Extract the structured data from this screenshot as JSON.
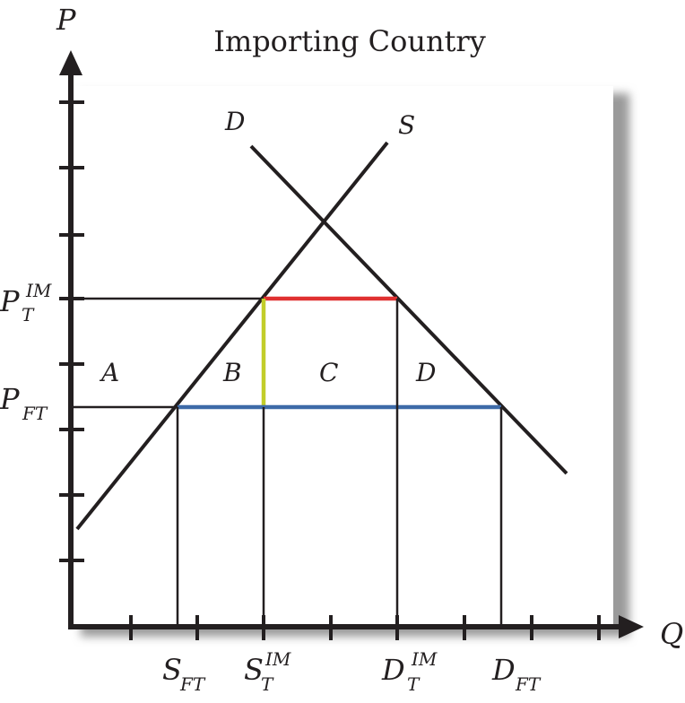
{
  "title": "Importing Country",
  "axes": {
    "y_label": "P",
    "x_label": "Q"
  },
  "curves": {
    "demand_label": "D",
    "supply_label": "S"
  },
  "price_labels": {
    "pt_im": {
      "main": "P",
      "sub": "T",
      "sup": "IM"
    },
    "p_ft": {
      "main": "P",
      "sub": "FT"
    }
  },
  "quantity_labels": {
    "s_ft": {
      "main": "S",
      "sub": "FT"
    },
    "s_t_im": {
      "main": "S",
      "sub": "T",
      "sup": "IM"
    },
    "d_t_im": {
      "main": "D",
      "sub": "T",
      "sup": "IM"
    },
    "d_ft": {
      "main": "D",
      "sub": "FT"
    }
  },
  "areas": {
    "a": "A",
    "b": "B",
    "c": "C",
    "d": "D"
  },
  "colors": {
    "background_panel": "#d7d7d7",
    "axis": "#231f20",
    "tariff_gap_red": "#e03131",
    "tariff_gap_yellow": "#c2cd2a",
    "free_trade_blue": "#3d6aa8"
  }
}
